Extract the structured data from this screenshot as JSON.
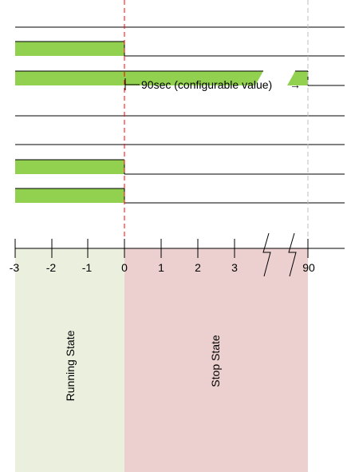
{
  "timeline": {
    "ticks": [
      "-3",
      "-2",
      "-1",
      "0",
      "1",
      "2",
      "3",
      "90"
    ],
    "break_marks": 2
  },
  "zones": [
    {
      "label": "Running State",
      "color": "#ebf0de"
    },
    {
      "label": "Stop State",
      "color": "#ecd0cf"
    }
  ],
  "signals": [
    {
      "active": "none"
    },
    {
      "active": "until-0"
    },
    {
      "active": "until-90"
    },
    {
      "active": "none"
    },
    {
      "active": "none"
    },
    {
      "active": "until-0"
    },
    {
      "active": "until-0"
    }
  ],
  "annotation": {
    "text": "90sec (configurable value)",
    "arrow": "→"
  },
  "colors": {
    "signal_fill": "#92d050",
    "zero_marker": "#ff0000",
    "end_marker": "#bfbfbf",
    "line": "#000000"
  }
}
